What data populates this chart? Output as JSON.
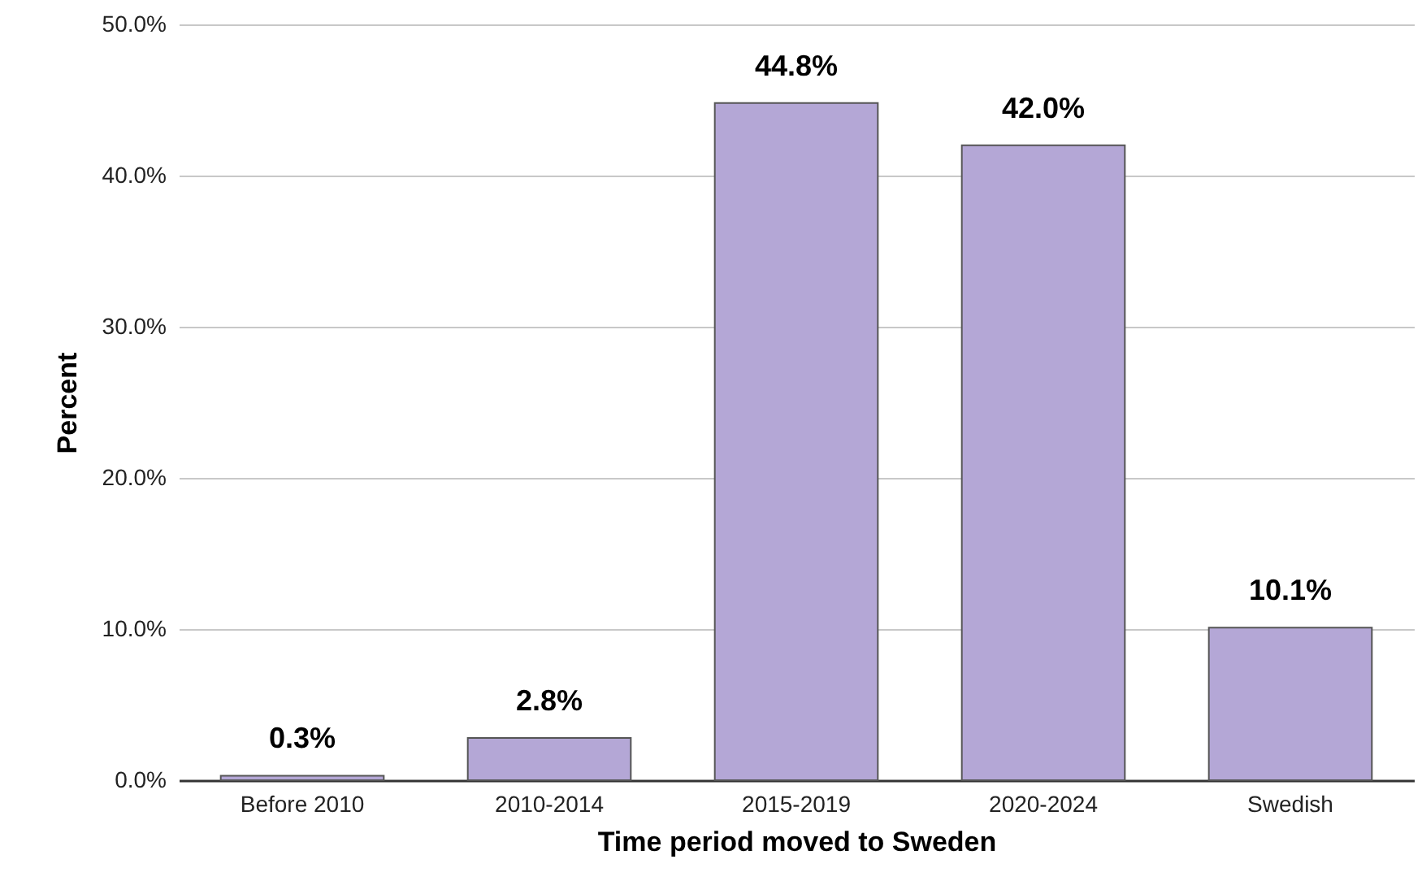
{
  "chart_data": {
    "type": "bar",
    "xlabel": "Time period moved to Sweden",
    "ylabel": "Percent",
    "categories": [
      "Before 2010",
      "2010-2014",
      "2015-2019",
      "2020-2024",
      "Swedish"
    ],
    "values": [
      0.3,
      2.8,
      44.8,
      42.0,
      10.1
    ],
    "value_labels": [
      "0.3%",
      "2.8%",
      "44.8%",
      "42.0%",
      "10.1%"
    ],
    "color": "#b4a7d6",
    "ylim": [
      0,
      50
    ],
    "yticks": [
      {
        "value": 0,
        "label": "0.0%"
      },
      {
        "value": 10,
        "label": "10.0%"
      },
      {
        "value": 20,
        "label": "20.0%"
      },
      {
        "value": 30,
        "label": "30.0%"
      },
      {
        "value": 40,
        "label": "40.0%"
      },
      {
        "value": 50,
        "label": "50.0%"
      }
    ],
    "grid": "y"
  }
}
